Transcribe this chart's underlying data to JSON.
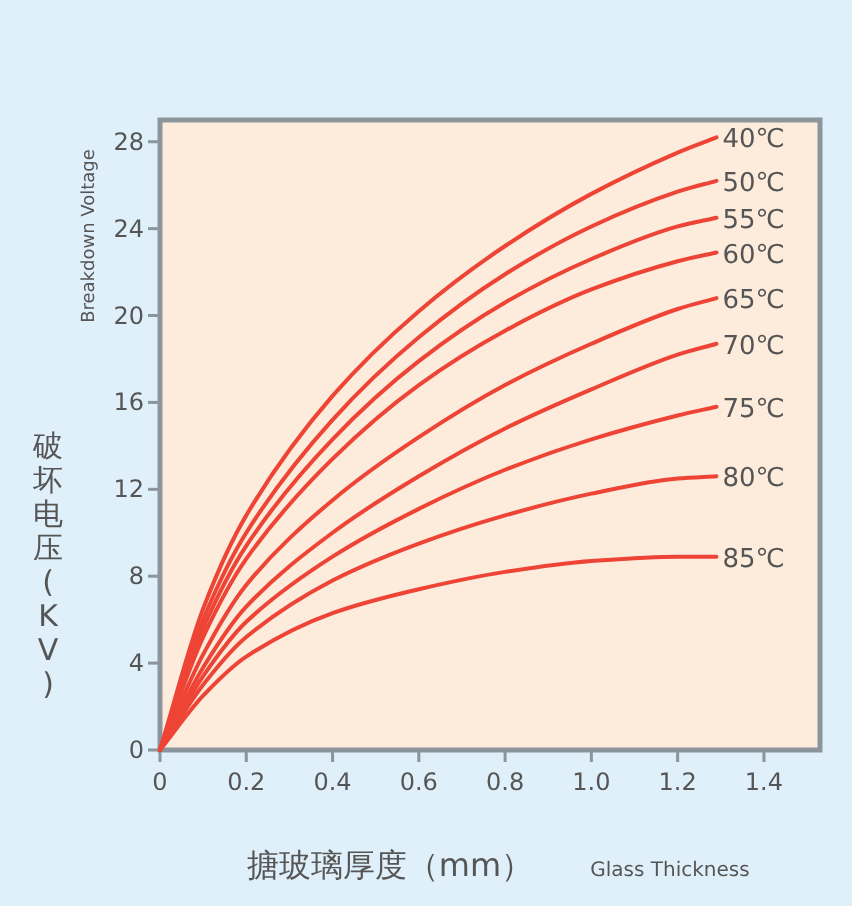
{
  "chart_data": {
    "type": "line",
    "xlabel": "搪玻璃厚度（mm）",
    "ylabel": "破坏电压(KV)",
    "annotations": [
      "Breakdown Voltage",
      "Glass Thickness"
    ],
    "x": [
      0,
      0.1,
      0.2,
      0.4,
      0.6,
      0.8,
      1.0,
      1.2,
      1.29
    ],
    "xlim": [
      0,
      1.53
    ],
    "ylim": [
      0,
      29
    ],
    "xticks": [
      0,
      0.2,
      0.4,
      0.6,
      0.8,
      {
        "value": 1.0,
        "label": "1.0"
      },
      1.2,
      1.4
    ],
    "yticks": [
      0,
      4,
      8,
      12,
      16,
      20,
      24,
      28
    ],
    "grid": false,
    "marker": "none",
    "line_style": "solid",
    "series": [
      {
        "name": "40℃",
        "color": "#ee4436",
        "values": [
          0,
          6.5,
          10.8,
          16.3,
          20.2,
          23.2,
          25.6,
          27.5,
          28.2
        ]
      },
      {
        "name": "50℃",
        "color": "#ee4436",
        "values": [
          0,
          6.0,
          10.0,
          15.2,
          19.0,
          21.9,
          24.1,
          25.7,
          26.2
        ]
      },
      {
        "name": "55℃",
        "color": "#ee4436",
        "values": [
          0,
          5.6,
          9.4,
          14.3,
          17.9,
          20.6,
          22.6,
          24.1,
          24.5
        ]
      },
      {
        "name": "60℃",
        "color": "#ee4436",
        "values": [
          0,
          5.2,
          8.8,
          13.4,
          16.8,
          19.3,
          21.2,
          22.5,
          22.9
        ]
      },
      {
        "name": "65℃",
        "color": "#ee4436",
        "values": [
          0,
          4.4,
          7.6,
          11.5,
          14.4,
          16.8,
          18.7,
          20.3,
          20.8
        ]
      },
      {
        "name": "70℃",
        "color": "#ee4436",
        "values": [
          0,
          3.8,
          6.6,
          10.0,
          12.6,
          14.8,
          16.6,
          18.2,
          18.7
        ]
      },
      {
        "name": "75℃",
        "color": "#ee4436",
        "values": [
          0,
          3.4,
          5.9,
          8.9,
          11.1,
          12.9,
          14.3,
          15.4,
          15.8
        ]
      },
      {
        "name": "80℃",
        "color": "#ee4436",
        "values": [
          0,
          3.0,
          5.2,
          7.8,
          9.5,
          10.8,
          11.8,
          12.5,
          12.6
        ]
      },
      {
        "name": "85℃",
        "color": "#ee4436",
        "values": [
          0,
          2.5,
          4.3,
          6.3,
          7.4,
          8.2,
          8.7,
          8.9,
          8.9
        ]
      }
    ]
  }
}
